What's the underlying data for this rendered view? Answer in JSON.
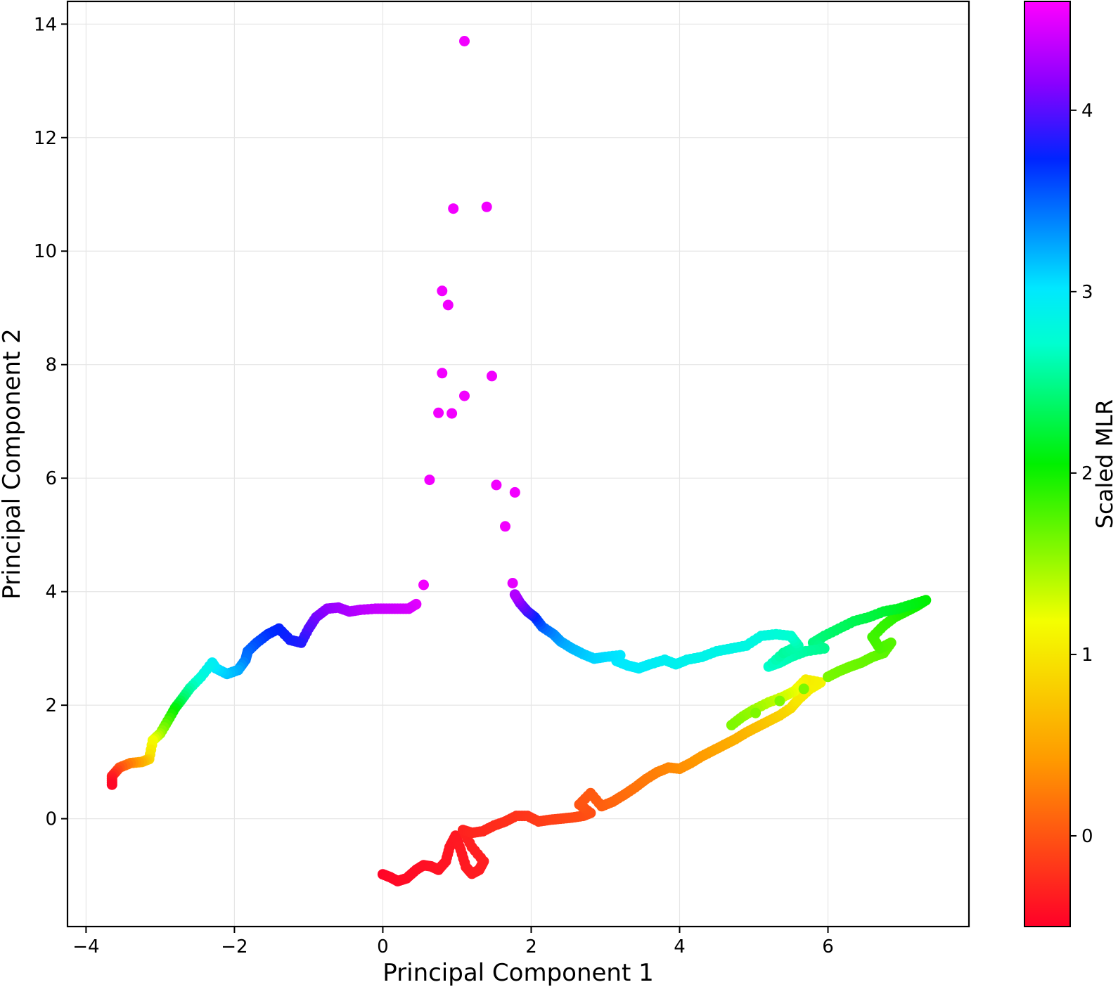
{
  "chart_data": {
    "type": "scatter",
    "title": "",
    "xlabel": "Principal Component 1",
    "ylabel": "Principal Component 2",
    "xlim": [
      -4.25,
      7.9
    ],
    "ylim": [
      -1.9,
      14.4
    ],
    "xticks": [
      -4,
      -2,
      0,
      2,
      4,
      6
    ],
    "yticks": [
      0,
      2,
      4,
      6,
      8,
      10,
      12,
      14
    ],
    "xtick_labels": [
      "−4",
      "−2",
      "0",
      "2",
      "4",
      "6"
    ],
    "ytick_labels": [
      "0",
      "2",
      "4",
      "6",
      "8",
      "10",
      "12",
      "14"
    ],
    "grid": true,
    "legend": "none",
    "colorbar": {
      "label": "Scaled MLR",
      "colormap": "gist_rainbow-like (red → orange → yellow → green → cyan → blue → magenta)",
      "range": [
        -0.5,
        4.6
      ],
      "ticks": [
        0,
        1,
        2,
        3,
        4
      ],
      "tick_labels": [
        "0",
        "1",
        "2",
        "3",
        "4"
      ]
    },
    "series": [
      {
        "points": [
          [
            0.0,
            -0.98,
            -0.48
          ],
          [
            0.1,
            -1.03,
            -0.46
          ],
          [
            0.2,
            -1.1,
            -0.45
          ],
          [
            0.32,
            -1.05,
            -0.43
          ],
          [
            0.45,
            -0.9,
            -0.42
          ],
          [
            0.55,
            -0.82,
            -0.41
          ],
          [
            0.65,
            -0.84,
            -0.4
          ],
          [
            0.75,
            -0.9,
            -0.39
          ],
          [
            0.85,
            -0.75,
            -0.38
          ],
          [
            0.9,
            -0.5,
            -0.37
          ],
          [
            0.98,
            -0.3,
            -0.36
          ],
          [
            1.05,
            -0.55,
            -0.35
          ],
          [
            1.12,
            -0.85,
            -0.35
          ],
          [
            1.2,
            -0.97,
            -0.34
          ],
          [
            1.3,
            -0.9,
            -0.33
          ],
          [
            1.36,
            -0.75,
            -0.32
          ],
          [
            1.2,
            -0.5,
            -0.31
          ],
          [
            1.08,
            -0.2,
            -0.3
          ],
          [
            1.2,
            -0.25,
            -0.28
          ],
          [
            1.35,
            -0.22,
            -0.26
          ],
          [
            1.5,
            -0.12,
            -0.24
          ],
          [
            1.65,
            -0.05,
            -0.22
          ],
          [
            1.8,
            0.05,
            -0.2
          ],
          [
            1.95,
            0.05,
            -0.18
          ],
          [
            2.1,
            -0.05,
            -0.15
          ],
          [
            2.25,
            -0.02,
            -0.12
          ],
          [
            2.4,
            0.0,
            -0.1
          ],
          [
            2.55,
            0.02,
            -0.08
          ],
          [
            2.7,
            0.05,
            -0.05
          ],
          [
            2.8,
            0.1,
            -0.03
          ],
          [
            2.65,
            0.25,
            0.0
          ],
          [
            2.8,
            0.45,
            0.03
          ],
          [
            2.95,
            0.22,
            0.06
          ],
          [
            3.1,
            0.3,
            0.1
          ],
          [
            3.25,
            0.42,
            0.14
          ],
          [
            3.4,
            0.55,
            0.18
          ],
          [
            3.55,
            0.7,
            0.22
          ],
          [
            3.7,
            0.82,
            0.26
          ],
          [
            3.85,
            0.9,
            0.3
          ],
          [
            4.0,
            0.88,
            0.34
          ],
          [
            4.15,
            0.98,
            0.38
          ],
          [
            4.3,
            1.1,
            0.42
          ],
          [
            4.45,
            1.2,
            0.47
          ],
          [
            4.6,
            1.3,
            0.52
          ],
          [
            4.75,
            1.4,
            0.57
          ],
          [
            4.9,
            1.52,
            0.62
          ],
          [
            5.05,
            1.62,
            0.68
          ],
          [
            5.2,
            1.72,
            0.75
          ],
          [
            5.35,
            1.82,
            0.82
          ],
          [
            5.5,
            1.95,
            0.9
          ],
          [
            5.6,
            2.1,
            1.0
          ],
          [
            5.75,
            2.28,
            1.05
          ],
          [
            5.9,
            2.4,
            1.1
          ],
          [
            5.7,
            2.45,
            1.05
          ],
          [
            5.55,
            2.25,
            1.2
          ],
          [
            5.4,
            2.15,
            1.3
          ],
          [
            5.2,
            2.05,
            1.4
          ],
          [
            5.0,
            1.92,
            1.5
          ],
          [
            4.85,
            1.8,
            1.55
          ],
          [
            4.7,
            1.65,
            1.6
          ],
          [
            6.0,
            2.5,
            1.62
          ],
          [
            6.15,
            2.6,
            1.64
          ],
          [
            6.3,
            2.68,
            1.66
          ],
          [
            6.45,
            2.75,
            1.68
          ],
          [
            6.6,
            2.85,
            1.7
          ],
          [
            6.75,
            2.92,
            1.72
          ],
          [
            6.85,
            3.1,
            1.75
          ],
          [
            6.7,
            3.0,
            1.78
          ],
          [
            6.6,
            3.2,
            1.82
          ],
          [
            6.75,
            3.4,
            1.86
          ],
          [
            6.9,
            3.55,
            1.9
          ],
          [
            7.05,
            3.65,
            1.95
          ],
          [
            7.2,
            3.75,
            2.0
          ],
          [
            7.32,
            3.85,
            2.05
          ],
          [
            7.15,
            3.78,
            2.1
          ],
          [
            6.95,
            3.7,
            2.15
          ],
          [
            6.75,
            3.65,
            2.2
          ],
          [
            6.55,
            3.55,
            2.25
          ],
          [
            6.35,
            3.48,
            2.3
          ],
          [
            6.15,
            3.35,
            2.35
          ],
          [
            5.95,
            3.22,
            2.4
          ],
          [
            5.8,
            3.1,
            2.45
          ],
          [
            5.95,
            3.0,
            2.5
          ],
          [
            5.7,
            2.95,
            2.55
          ],
          [
            5.5,
            2.85,
            2.6
          ],
          [
            5.35,
            2.75,
            2.65
          ],
          [
            5.2,
            2.68,
            2.7
          ],
          [
            5.4,
            2.92,
            2.55
          ],
          [
            5.6,
            3.05,
            2.6
          ],
          [
            5.5,
            3.22,
            2.7
          ],
          [
            5.3,
            3.25,
            2.75
          ],
          [
            5.1,
            3.22,
            2.8
          ],
          [
            4.9,
            3.05,
            2.82
          ],
          [
            4.7,
            3.0,
            2.84
          ],
          [
            4.5,
            2.95,
            2.85
          ],
          [
            4.3,
            2.85,
            2.87
          ],
          [
            4.1,
            2.8,
            2.88
          ],
          [
            3.95,
            2.72,
            2.9
          ],
          [
            3.8,
            2.8,
            2.92
          ],
          [
            3.6,
            2.72,
            2.95
          ],
          [
            3.45,
            2.65,
            2.97
          ],
          [
            3.3,
            2.7,
            2.99
          ],
          [
            3.15,
            2.78,
            3.0
          ],
          [
            3.2,
            2.88,
            3.02
          ],
          [
            3.0,
            2.85,
            3.05
          ],
          [
            2.85,
            2.82,
            3.08
          ],
          [
            2.7,
            2.9,
            3.12
          ],
          [
            2.55,
            3.0,
            3.18
          ],
          [
            2.4,
            3.12,
            3.25
          ],
          [
            2.3,
            3.25,
            3.35
          ],
          [
            2.15,
            3.38,
            3.5
          ],
          [
            2.05,
            3.55,
            3.7
          ],
          [
            1.95,
            3.65,
            3.9
          ],
          [
            1.85,
            3.8,
            4.1
          ],
          [
            1.78,
            3.95,
            4.3
          ],
          [
            1.75,
            4.15,
            4.5
          ],
          [
            1.65,
            5.15,
            4.55
          ],
          [
            1.78,
            5.75,
            4.55
          ],
          [
            1.53,
            5.88,
            4.55
          ],
          [
            1.47,
            7.8,
            4.55
          ],
          [
            1.4,
            10.78,
            4.55
          ],
          [
            1.1,
            13.7,
            4.55
          ],
          [
            0.95,
            10.75,
            4.55
          ],
          [
            0.8,
            9.3,
            4.55
          ],
          [
            0.88,
            9.05,
            4.55
          ],
          [
            0.8,
            7.85,
            4.55
          ],
          [
            1.1,
            7.45,
            4.55
          ],
          [
            0.75,
            7.15,
            4.55
          ],
          [
            0.93,
            7.14,
            4.55
          ],
          [
            0.63,
            5.97,
            4.55
          ],
          [
            0.55,
            4.12,
            4.55
          ],
          [
            0.45,
            3.78,
            4.5
          ],
          [
            0.35,
            3.7,
            4.45
          ],
          [
            0.2,
            3.7,
            4.42
          ],
          [
            0.05,
            3.7,
            4.4
          ],
          [
            -0.1,
            3.7,
            4.38
          ],
          [
            -0.3,
            3.68,
            4.35
          ],
          [
            -0.45,
            3.65,
            4.3
          ],
          [
            -0.6,
            3.72,
            4.25
          ],
          [
            -0.75,
            3.7,
            4.2
          ],
          [
            -0.9,
            3.55,
            4.1
          ],
          [
            -1.0,
            3.35,
            4.0
          ],
          [
            -1.1,
            3.1,
            3.85
          ],
          [
            -1.25,
            3.15,
            3.8
          ],
          [
            -1.4,
            3.35,
            3.75
          ],
          [
            -1.55,
            3.25,
            3.7
          ],
          [
            -1.7,
            3.1,
            3.6
          ],
          [
            -1.82,
            2.95,
            3.5
          ],
          [
            -1.85,
            2.8,
            3.45
          ],
          [
            -1.95,
            2.62,
            3.25
          ],
          [
            -2.1,
            2.55,
            3.15
          ],
          [
            -2.25,
            2.65,
            3.05
          ],
          [
            -2.3,
            2.75,
            2.95
          ],
          [
            -2.45,
            2.5,
            2.8
          ],
          [
            -2.6,
            2.3,
            2.6
          ],
          [
            -2.7,
            2.12,
            2.4
          ],
          [
            -2.8,
            1.95,
            2.1
          ],
          [
            -2.9,
            1.72,
            1.8
          ],
          [
            -3.0,
            1.5,
            1.5
          ],
          [
            -3.1,
            1.38,
            1.2
          ],
          [
            -3.15,
            1.05,
            0.9
          ],
          [
            -3.25,
            1.0,
            0.6
          ],
          [
            -3.4,
            0.98,
            0.3
          ],
          [
            -3.55,
            0.9,
            0.0
          ],
          [
            -3.65,
            0.75,
            -0.3
          ],
          [
            -3.65,
            0.6,
            -0.45
          ]
        ]
      }
    ]
  }
}
